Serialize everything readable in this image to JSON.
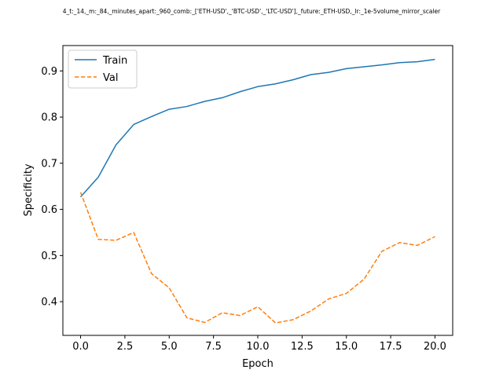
{
  "chart_data": {
    "type": "line",
    "title": "4_t:_14,_m:_84,_minutes_apart:_960_comb:_['ETH-USD',_'BTC-USD',_'LTC-USD'],_future:_ETH-USD,_lr:_1e-5volume_mirror_scaler",
    "xlabel": "Epoch",
    "ylabel": "Specificity",
    "xlim": [
      -1.0,
      21.0
    ],
    "ylim": [
      0.327,
      0.955
    ],
    "xticks": [
      0,
      2.5,
      5,
      7.5,
      10,
      12.5,
      15,
      17.5,
      20
    ],
    "xtick_labels": [
      "0.0",
      "2.5",
      "5.0",
      "7.5",
      "10.0",
      "12.5",
      "15.0",
      "17.5",
      "20.0"
    ],
    "yticks": [
      0.4,
      0.5,
      0.6,
      0.7,
      0.8,
      0.9
    ],
    "ytick_labels": [
      "0.4",
      "0.5",
      "0.6",
      "0.7",
      "0.8",
      "0.9"
    ],
    "grid": false,
    "legend_position": "top-left",
    "x": [
      0,
      1,
      2,
      3,
      4,
      5,
      6,
      7,
      8,
      9,
      10,
      11,
      12,
      13,
      14,
      15,
      16,
      17,
      18,
      19,
      20
    ],
    "series": [
      {
        "name": "Train",
        "color": "#1f77b4",
        "style": "solid",
        "values": [
          0.627,
          0.67,
          0.74,
          0.784,
          0.801,
          0.817,
          0.823,
          0.834,
          0.842,
          0.855,
          0.866,
          0.872,
          0.881,
          0.892,
          0.897,
          0.905,
          0.909,
          0.913,
          0.918,
          0.92,
          0.925
        ]
      },
      {
        "name": "Val",
        "color": "#ff7f0e",
        "style": "dashed",
        "values": [
          0.637,
          0.535,
          0.533,
          0.55,
          0.461,
          0.43,
          0.365,
          0.355,
          0.376,
          0.37,
          0.389,
          0.354,
          0.361,
          0.38,
          0.406,
          0.418,
          0.449,
          0.509,
          0.528,
          0.522,
          0.541
        ]
      }
    ]
  }
}
